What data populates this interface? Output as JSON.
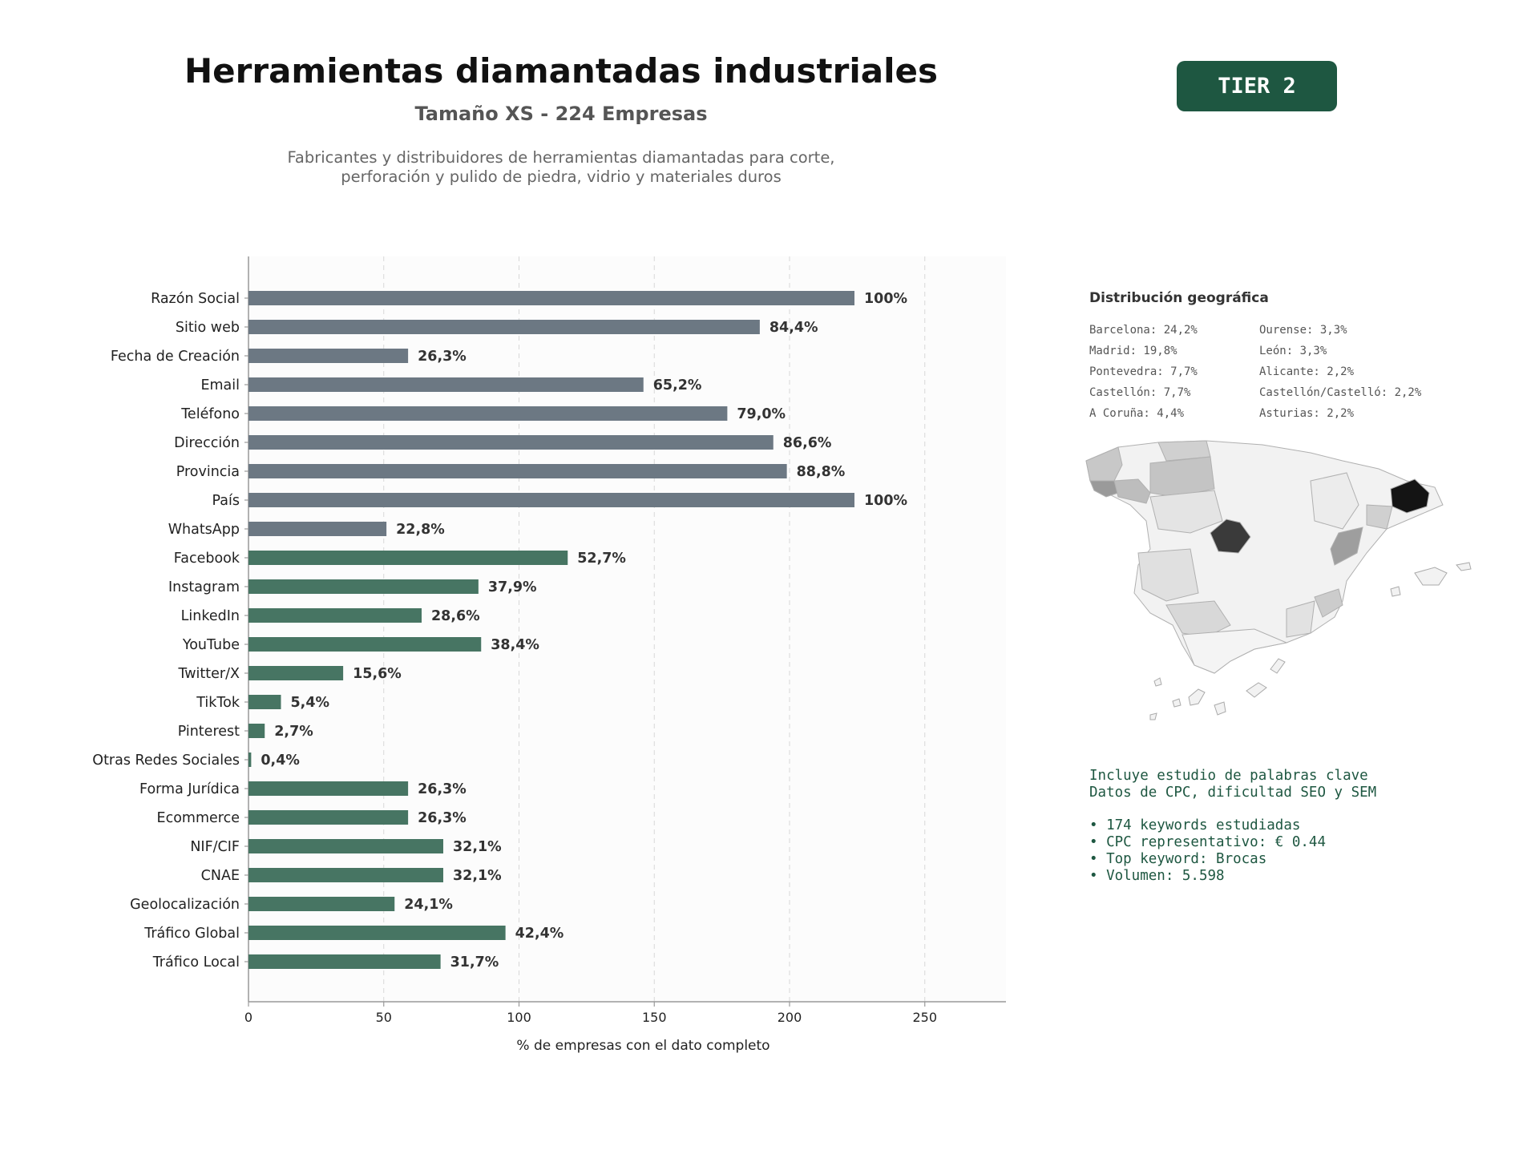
{
  "header": {
    "title": "Herramientas diamantadas industriales",
    "subtitle": "Tamaño XS - 224 Empresas",
    "description_line1": "Fabricantes y distribuidores de herramientas diamantadas para corte,",
    "description_line2": "perforación y pulido de piedra, vidrio y materiales duros",
    "tier": "TIER 2"
  },
  "colors": {
    "gray_bar": "#6c7883",
    "green_bar": "#477563",
    "brand": "#1e5741"
  },
  "chart_data": {
    "type": "bar",
    "orientation": "horizontal",
    "xlabel": "% de empresas con el dato completo",
    "xlim": [
      0,
      280
    ],
    "xticks": [
      0,
      50,
      100,
      150,
      200,
      250
    ],
    "grid": "vertical dashed",
    "categories": [
      "Razón Social",
      "Sitio web",
      "Fecha de Creación",
      "Email",
      "Teléfono",
      "Dirección",
      "Provincia",
      "País",
      "WhatsApp",
      "Facebook",
      "Instagram",
      "LinkedIn",
      "YouTube",
      "Twitter/X",
      "TikTok",
      "Pinterest",
      "Otras Redes Sociales",
      "Forma Jurídica",
      "Ecommerce",
      "NIF/CIF",
      "CNAE",
      "Geolocalización",
      "Tráfico Global",
      "Tráfico Local"
    ],
    "values": [
      224,
      189,
      59,
      146,
      177,
      194,
      199,
      224,
      51,
      118,
      85,
      64,
      86,
      35,
      12,
      6,
      1,
      59,
      59,
      72,
      72,
      54,
      95,
      71
    ],
    "labels": [
      "100%",
      "84,4%",
      "26,3%",
      "65,2%",
      "79,0%",
      "86,6%",
      "88,8%",
      "100%",
      "22,8%",
      "52,7%",
      "37,9%",
      "28,6%",
      "38,4%",
      "15,6%",
      "5,4%",
      "2,7%",
      "0,4%",
      "26,3%",
      "26,3%",
      "32,1%",
      "32,1%",
      "24,1%",
      "42,4%",
      "31,7%"
    ],
    "groups": [
      "gray",
      "gray",
      "gray",
      "gray",
      "gray",
      "gray",
      "gray",
      "gray",
      "gray",
      "green",
      "green",
      "green",
      "green",
      "green",
      "green",
      "green",
      "green",
      "green",
      "green",
      "green",
      "green",
      "green",
      "green",
      "green"
    ]
  },
  "geo": {
    "title": "Distribución geográfica",
    "col1": [
      "Barcelona: 24,2%",
      "Madrid: 19,8%",
      "Pontevedra: 7,7%",
      "Castellón: 7,7%",
      "A Coruña: 4,4%"
    ],
    "col2": [
      "Ourense: 3,3%",
      "León: 3,3%",
      "Alicante: 2,2%",
      "Castellón/Castelló: 2,2%",
      "Asturias: 2,2%"
    ]
  },
  "keywords": {
    "line1": "Incluye estudio de palabras clave",
    "line2": "Datos de CPC, dificultad SEO y SEM",
    "bullets": [
      "• 174 keywords estudiadas",
      "• CPC representativo: € 0.44",
      "• Top keyword: Brocas",
      "• Volumen: 5.598"
    ]
  }
}
